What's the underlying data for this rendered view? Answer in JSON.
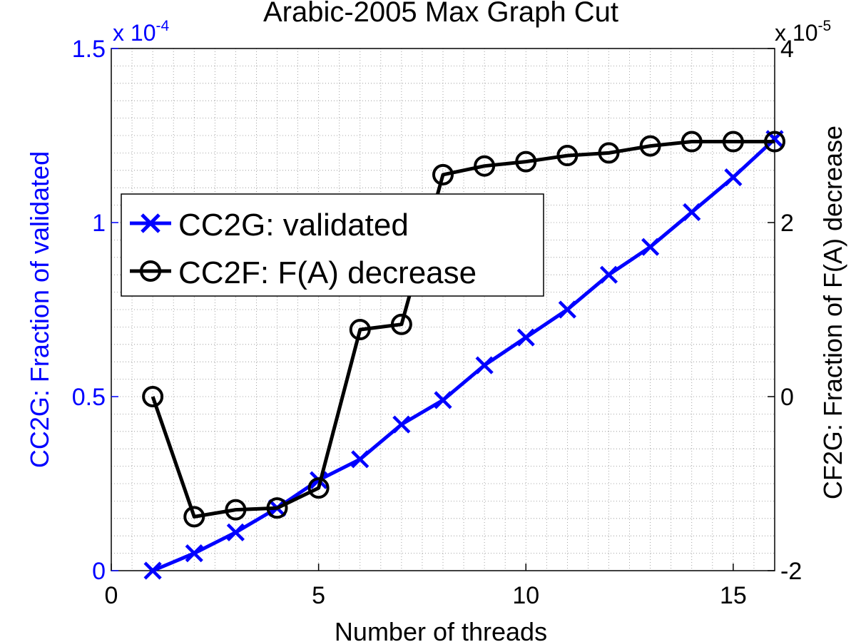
{
  "chart_data": {
    "type": "line",
    "title": "Arabic-2005 Max Graph Cut",
    "xlabel": "Number of threads",
    "ylabel_left": "CC2G: Fraction of validated",
    "ylabel_right": "CF2G: Fraction of F(A) decrease",
    "left_multiplier": {
      "base": "x 10",
      "exp": "-4"
    },
    "right_multiplier": {
      "base": "x 10",
      "exp": "-5"
    },
    "xlim": [
      0,
      16
    ],
    "ylim_left": [
      0,
      1.5
    ],
    "ylim_right": [
      -2,
      4
    ],
    "x_ticks": [
      "0",
      "5",
      "10",
      "15"
    ],
    "y_left_ticks": [
      "0",
      "0.5",
      "1",
      "1.5"
    ],
    "y_right_ticks": [
      "-2",
      "0",
      "2",
      "4"
    ],
    "grid": true,
    "legend_position": "upper-left",
    "colors": {
      "left_axis": "#0000ff",
      "series1": "#0000ff",
      "series2": "#000000"
    },
    "series": [
      {
        "name": "CC2G: validated",
        "axis": "left",
        "marker": "x",
        "x": [
          1,
          2,
          3,
          4,
          5,
          6,
          7,
          8,
          9,
          10,
          11,
          12,
          13,
          14,
          15,
          16
        ],
        "values": [
          0.0,
          0.05,
          0.11,
          0.18,
          0.26,
          0.32,
          0.42,
          0.49,
          0.59,
          0.67,
          0.75,
          0.85,
          0.93,
          1.03,
          1.13,
          1.24
        ]
      },
      {
        "name": "CC2F: F(A) decrease",
        "axis": "right",
        "marker": "o",
        "x": [
          1,
          2,
          3,
          4,
          5,
          6,
          7,
          8,
          9,
          10,
          11,
          12,
          13,
          14,
          15,
          16
        ],
        "values": [
          0.0,
          -1.38,
          -1.3,
          -1.28,
          -1.05,
          0.77,
          0.83,
          2.55,
          2.65,
          2.7,
          2.77,
          2.8,
          2.88,
          2.93,
          2.93,
          2.93
        ]
      }
    ]
  }
}
